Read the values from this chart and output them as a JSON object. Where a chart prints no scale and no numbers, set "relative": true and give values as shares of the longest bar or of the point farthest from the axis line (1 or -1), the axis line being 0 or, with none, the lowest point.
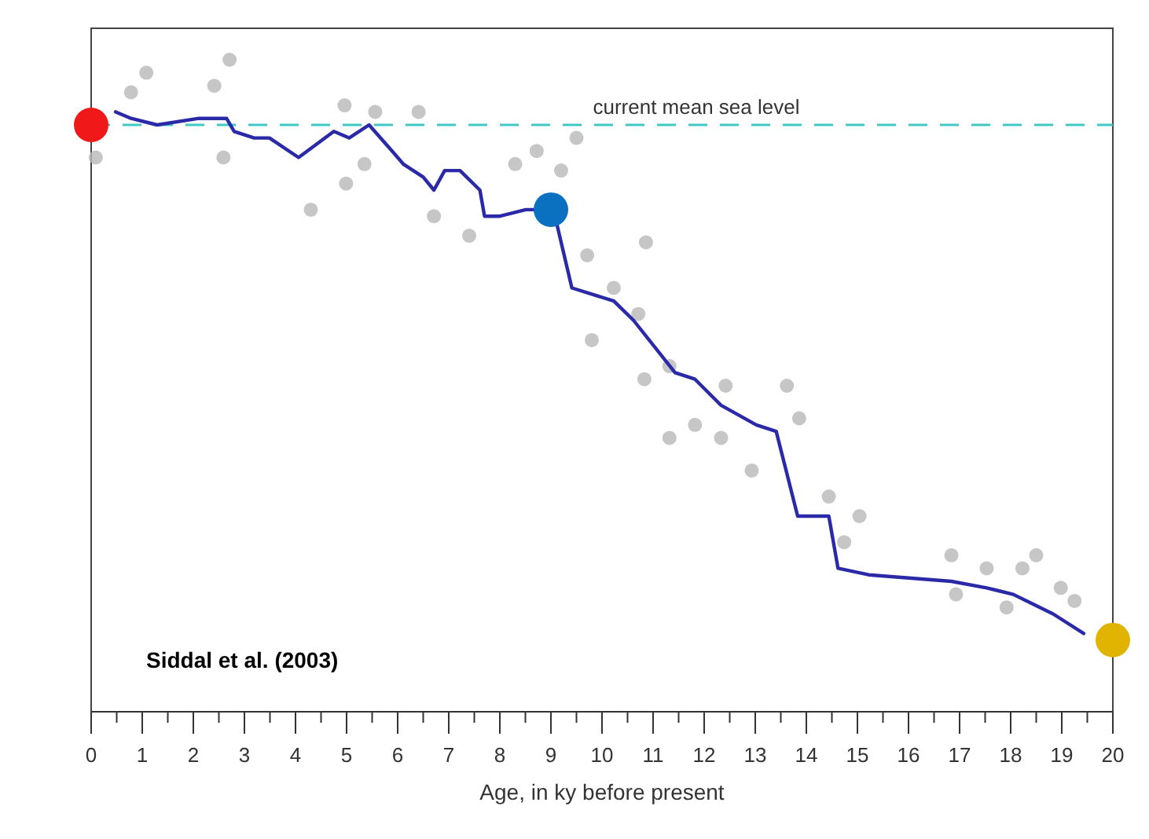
{
  "chart_data": {
    "type": "line",
    "xlabel": "Age, in ky before present",
    "relative": true,
    "xlim": [
      0,
      20
    ],
    "xticks": [
      0,
      1,
      2,
      3,
      4,
      5,
      6,
      7,
      8,
      9,
      10,
      11,
      12,
      13,
      14,
      15,
      16,
      17,
      18,
      19,
      20,
      {
        "value": 0.5,
        "label": null
      },
      {
        "value": 1.5,
        "label": null
      },
      {
        "value": 2.5,
        "label": null
      },
      {
        "value": 3.5,
        "label": null
      },
      {
        "value": 4.5,
        "label": null
      },
      {
        "value": 5.5,
        "label": null
      },
      {
        "value": 6.5,
        "label": null
      },
      {
        "value": 7.5,
        "label": null
      },
      {
        "value": 8.5,
        "label": null
      },
      {
        "value": 9.5,
        "label": null
      },
      {
        "value": 10.5,
        "label": null
      },
      {
        "value": 11.5,
        "label": null
      },
      {
        "value": 12.5,
        "label": null
      },
      {
        "value": 13.5,
        "label": null
      },
      {
        "value": 14.5,
        "label": null
      },
      {
        "value": 15.5,
        "label": null
      },
      {
        "value": 16.5,
        "label": null
      },
      {
        "value": 17.5,
        "label": null
      },
      {
        "value": 18.5,
        "label": null
      },
      {
        "value": 19.5,
        "label": null
      }
    ],
    "grid": false,
    "legend": false,
    "line_style": "solid",
    "ref_lines": [
      {
        "axis": "y",
        "value": 0.9,
        "label": "current mean sea level",
        "color": "#40c8c8",
        "line_style": "dashed"
      }
    ],
    "annotations": [
      "Siddal et al. (2003)"
    ],
    "series": [
      {
        "type": "scatter",
        "color": "#b8b8b8",
        "marker": "circle",
        "x": [
          0.09,
          1.08,
          0.78,
          2.71,
          2.41,
          4.96,
          5.56,
          6.41,
          4.3,
          4.99,
          5.35,
          2.59,
          8.72,
          9.2,
          8.3,
          6.71,
          7.4,
          9.5,
          10.86,
          9.71,
          9.8,
          10.83,
          11.32,
          11.82,
          12.33,
          12.93,
          13.62,
          13.86,
          14.44,
          15.04,
          14.74,
          16.84,
          16.93,
          17.53,
          18.5,
          18.23,
          18.98,
          19.25,
          17.92,
          10.23,
          10.71,
          11.32,
          12.42
        ],
        "values": [
          0.85,
          0.98,
          0.95,
          1,
          0.96,
          0.93,
          0.92,
          0.92,
          0.77,
          0.81,
          0.84,
          0.85,
          0.86,
          0.83,
          0.84,
          0.76,
          0.73,
          0.88,
          0.72,
          0.7,
          0.57,
          0.51,
          0.42,
          0.44,
          0.42,
          0.37,
          0.5,
          0.45,
          0.33,
          0.3,
          0.26,
          0.24,
          0.18,
          0.22,
          0.24,
          0.22,
          0.19,
          0.17,
          0.16,
          0.65,
          0.61,
          0.53,
          0.5
        ]
      },
      {
        "color": "#2a2aa8",
        "x": [
          0.48,
          0.78,
          1.29,
          2.11,
          2.65,
          2.8,
          3.19,
          3.49,
          4.06,
          4.75,
          5.05,
          5.44,
          5.89,
          6.11,
          6.5,
          6.71,
          6.92,
          7.22,
          7.61,
          7.7,
          8,
          8.51,
          9.05,
          9.41,
          10.23,
          10.62,
          11.43,
          11.82,
          12.33,
          13.02,
          13.41,
          13.83,
          14.44,
          14.62,
          15.22,
          16.84,
          17.53,
          18.05,
          18.83,
          19.43
        ],
        "values": [
          0.92,
          0.91,
          0.9,
          0.91,
          0.91,
          0.89,
          0.88,
          0.88,
          0.85,
          0.89,
          0.88,
          0.9,
          0.86,
          0.84,
          0.82,
          0.8,
          0.83,
          0.83,
          0.8,
          0.76,
          0.76,
          0.77,
          0.77,
          0.65,
          0.63,
          0.6,
          0.52,
          0.51,
          0.47,
          0.44,
          0.43,
          0.3,
          0.3,
          0.22,
          0.21,
          0.2,
          0.19,
          0.18,
          0.15,
          0.12
        ]
      },
      {
        "type": "scatter",
        "marker": "circle",
        "colors": [
          "#f01818",
          "#0a70c0",
          "#e0b400"
        ],
        "x": [
          0,
          9,
          20
        ],
        "values": [
          0.9,
          0.77,
          0.11
        ]
      }
    ]
  }
}
